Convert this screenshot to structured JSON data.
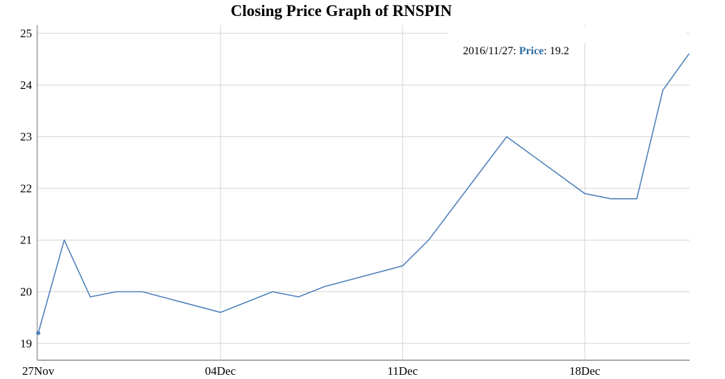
{
  "title": "Closing Price Graph of RNSPIN",
  "tooltip": {
    "date_part": "2016/11/27: ",
    "label": "Price",
    "value_part": ": 19.2"
  },
  "colors": {
    "line": "#4e81ba",
    "marker": "#4e81ba",
    "grid": "#d4d4d4",
    "axis": "#9d9d9d",
    "axis_bottom": "#a8a8a8",
    "text": "#000000",
    "tooltip_label": "#2e6da4",
    "background": "#ffffff"
  },
  "chart_data": {
    "type": "line",
    "title": "Closing Price Graph of RNSPIN",
    "xlabel": "",
    "ylabel": "",
    "grid": true,
    "legend_position": "none",
    "y_ticks": [
      19,
      20,
      21,
      22,
      23,
      24,
      25
    ],
    "ylim": [
      18.66,
      25.15
    ],
    "x_ticks": [
      {
        "label": "27Nov",
        "day": 0
      },
      {
        "label": "04Dec",
        "day": 7
      },
      {
        "label": "11Dec",
        "day": 14
      },
      {
        "label": "18Dec",
        "day": 21
      }
    ],
    "xlim_days": [
      0,
      25.05
    ],
    "series": [
      {
        "name": "Price",
        "dates": [
          "2016/11/27",
          "28Nov",
          "29Nov",
          "30Nov",
          "01Dec",
          "04Dec",
          "06Dec",
          "07Dec",
          "08Dec",
          "11Dec",
          "12Dec",
          "15Dec",
          "18Dec",
          "19Dec",
          "20Dec",
          "21Dec",
          "22Dec"
        ],
        "day_offsets": [
          0,
          1,
          2,
          3,
          4,
          7,
          9,
          10,
          11,
          14,
          15,
          18,
          21,
          22,
          23,
          24,
          25
        ],
        "values": [
          19.2,
          21.0,
          19.9,
          20.0,
          20.0,
          19.6,
          20.0,
          19.9,
          20.1,
          20.5,
          21.0,
          23.0,
          21.9,
          21.8,
          21.8,
          23.9,
          24.6
        ]
      }
    ],
    "highlighted_point": {
      "series": "Price",
      "date": "2016/11/27",
      "value": 19.2,
      "index": 0
    }
  }
}
